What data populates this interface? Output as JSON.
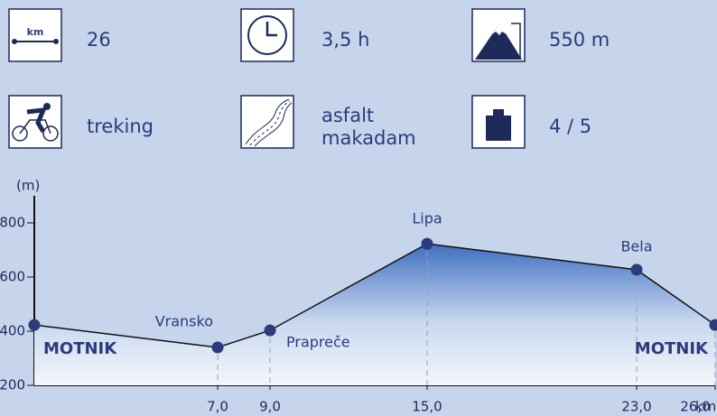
{
  "stats": [
    {
      "icon_text": "km",
      "value": "26"
    },
    {
      "value": "3,5 h"
    },
    {
      "value": "550 m"
    },
    {
      "value": "treking"
    },
    {
      "value": [
        "asfalt",
        "makadam"
      ]
    },
    {
      "value": "4 / 5"
    }
  ],
  "chart_data": {
    "type": "line",
    "y_label": "(m)",
    "x_unit": "km",
    "x": [
      0,
      7,
      9,
      15,
      23,
      26
    ],
    "values": [
      423,
      340,
      403,
      723,
      627,
      423
    ],
    "point_labels": [
      "MOTNIK",
      "Vransko",
      "Prapreče",
      "Lipa",
      "Bela",
      "MOTNIK"
    ],
    "color": "#2b3b7c",
    "xlim": [
      0,
      26
    ],
    "xticks": [
      {
        "value": 7,
        "label": "7,0"
      },
      {
        "value": 9,
        "label": "9,0"
      },
      {
        "value": 15,
        "label": "15,0"
      },
      {
        "value": 23,
        "label": "23,0"
      },
      {
        "value": 26,
        "label": "26,0"
      }
    ],
    "ylim": [
      200,
      900
    ],
    "yticks": [
      200,
      400,
      600,
      800
    ]
  }
}
